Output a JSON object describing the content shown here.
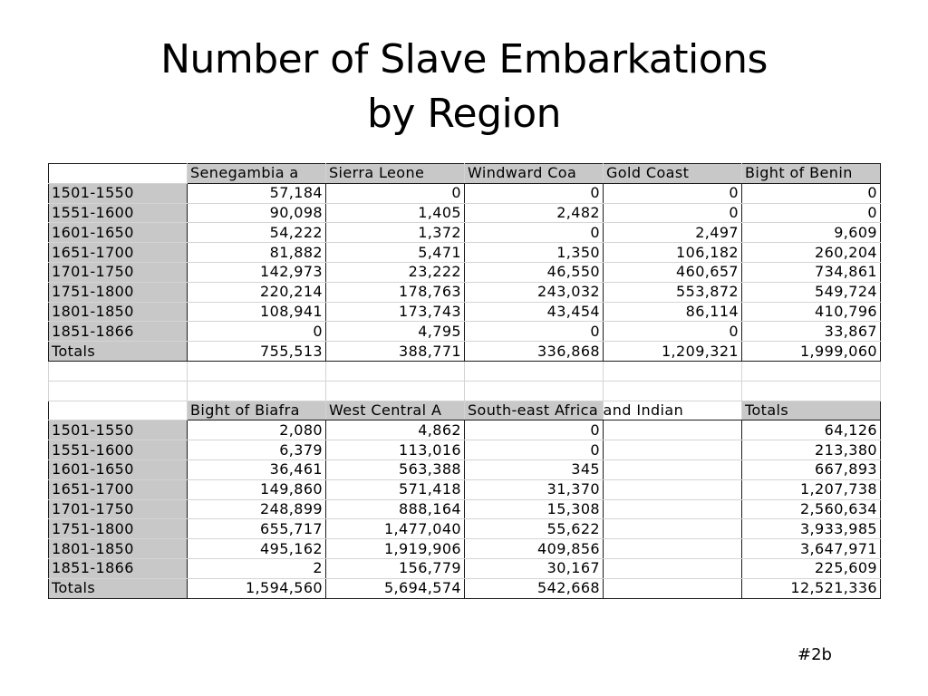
{
  "slide": {
    "title_line1": "Number of Slave Embarkations",
    "title_line2": "by Region",
    "slide_number": "#2b"
  },
  "table1": {
    "headers": [
      "Senegambia a",
      "Sierra Leone",
      "Windward Coa",
      "Gold Coast",
      "Bight of Benin"
    ],
    "rows": [
      {
        "label": "1501-1550",
        "values": [
          "57,184",
          "0",
          "0",
          "0",
          "0"
        ]
      },
      {
        "label": "1551-1600",
        "values": [
          "90,098",
          "1,405",
          "2,482",
          "0",
          "0"
        ]
      },
      {
        "label": "1601-1650",
        "values": [
          "54,222",
          "1,372",
          "0",
          "2,497",
          "9,609"
        ]
      },
      {
        "label": "1651-1700",
        "values": [
          "81,882",
          "5,471",
          "1,350",
          "106,182",
          "260,204"
        ]
      },
      {
        "label": "1701-1750",
        "values": [
          "142,973",
          "23,222",
          "46,550",
          "460,657",
          "734,861"
        ]
      },
      {
        "label": "1751-1800",
        "values": [
          "220,214",
          "178,763",
          "243,032",
          "553,872",
          "549,724"
        ]
      },
      {
        "label": "1801-1850",
        "values": [
          "108,941",
          "173,743",
          "43,454",
          "86,114",
          "410,796"
        ]
      },
      {
        "label": "1851-1866",
        "values": [
          "0",
          "4,795",
          "0",
          "0",
          "33,867"
        ]
      }
    ],
    "totals": {
      "label": "Totals",
      "values": [
        "755,513",
        "388,771",
        "336,868",
        "1,209,321",
        "1,999,060"
      ]
    }
  },
  "table2": {
    "headers": [
      "Bight of Biafra",
      "West Central A",
      "South-east Africa and Indian",
      "",
      "Totals"
    ],
    "rows": [
      {
        "label": "1501-1550",
        "values": [
          "2,080",
          "4,862",
          "0",
          "",
          "64,126"
        ]
      },
      {
        "label": "1551-1600",
        "values": [
          "6,379",
          "113,016",
          "0",
          "",
          "213,380"
        ]
      },
      {
        "label": "1601-1650",
        "values": [
          "36,461",
          "563,388",
          "345",
          "",
          "667,893"
        ]
      },
      {
        "label": "1651-1700",
        "values": [
          "149,860",
          "571,418",
          "31,370",
          "",
          "1,207,738"
        ]
      },
      {
        "label": "1701-1750",
        "values": [
          "248,899",
          "888,164",
          "15,308",
          "",
          "2,560,634"
        ]
      },
      {
        "label": "1751-1800",
        "values": [
          "655,717",
          "1,477,040",
          "55,622",
          "",
          "3,933,985"
        ]
      },
      {
        "label": "1801-1850",
        "values": [
          "495,162",
          "1,919,906",
          "409,856",
          "",
          "3,647,971"
        ]
      },
      {
        "label": "1851-1866",
        "values": [
          "2",
          "156,779",
          "30,167",
          "",
          "225,609"
        ]
      }
    ],
    "totals": {
      "label": "Totals",
      "values": [
        "1,594,560",
        "5,694,574",
        "542,668",
        "",
        "12,521,336"
      ]
    }
  }
}
